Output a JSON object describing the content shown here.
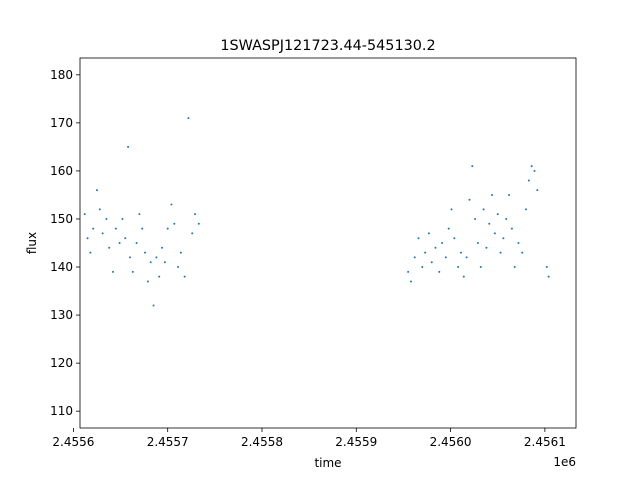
{
  "chart_data": {
    "type": "scatter",
    "title": "1SWASPJ121723.44-545130.2",
    "xlabel": "time",
    "ylabel": "flux",
    "x_offset_label": "1e6",
    "xlim": [
      2455607,
      2456133
    ],
    "ylim": [
      106.5,
      183.5
    ],
    "xticks": [
      2455600,
      2455700,
      2455800,
      2455900,
      2456000,
      2456100
    ],
    "xtick_labels": [
      "2.4556",
      "2.4557",
      "2.4558",
      "2.4559",
      "2.4560",
      "2.4561"
    ],
    "yticks": [
      110,
      120,
      130,
      140,
      150,
      160,
      170,
      180
    ],
    "ytick_labels": [
      "110",
      "120",
      "130",
      "140",
      "150",
      "160",
      "170",
      "180"
    ],
    "grid": false,
    "marker_color": "#1f77b4",
    "series": [
      {
        "points": [
          {
            "x": 2455612,
            "y": 151
          },
          {
            "x": 2455615,
            "y": 146
          },
          {
            "x": 2455618,
            "y": 143
          },
          {
            "x": 2455621,
            "y": 148
          },
          {
            "x": 2455625,
            "y": 156
          },
          {
            "x": 2455628,
            "y": 152
          },
          {
            "x": 2455631,
            "y": 147
          },
          {
            "x": 2455635,
            "y": 150
          },
          {
            "x": 2455638,
            "y": 144
          },
          {
            "x": 2455642,
            "y": 139
          },
          {
            "x": 2455645,
            "y": 148
          },
          {
            "x": 2455649,
            "y": 145
          },
          {
            "x": 2455652,
            "y": 150
          },
          {
            "x": 2455655,
            "y": 146
          },
          {
            "x": 2455658,
            "y": 165
          },
          {
            "x": 2455660,
            "y": 142
          },
          {
            "x": 2455663,
            "y": 139
          },
          {
            "x": 2455667,
            "y": 145
          },
          {
            "x": 2455670,
            "y": 151
          },
          {
            "x": 2455673,
            "y": 148
          },
          {
            "x": 2455676,
            "y": 143
          },
          {
            "x": 2455679,
            "y": 137
          },
          {
            "x": 2455682,
            "y": 141
          },
          {
            "x": 2455685,
            "y": 132
          },
          {
            "x": 2455688,
            "y": 142
          },
          {
            "x": 2455691,
            "y": 138
          },
          {
            "x": 2455694,
            "y": 144
          },
          {
            "x": 2455697,
            "y": 141
          },
          {
            "x": 2455700,
            "y": 148
          },
          {
            "x": 2455704,
            "y": 153
          },
          {
            "x": 2455707,
            "y": 149
          },
          {
            "x": 2455711,
            "y": 140
          },
          {
            "x": 2455714,
            "y": 143
          },
          {
            "x": 2455718,
            "y": 138
          },
          {
            "x": 2455722,
            "y": 171
          },
          {
            "x": 2455726,
            "y": 147
          },
          {
            "x": 2455729,
            "y": 151
          },
          {
            "x": 2455733,
            "y": 149
          },
          {
            "x": 2455955,
            "y": 139
          },
          {
            "x": 2455958,
            "y": 137
          },
          {
            "x": 2455962,
            "y": 142
          },
          {
            "x": 2455966,
            "y": 146
          },
          {
            "x": 2455970,
            "y": 140
          },
          {
            "x": 2455973,
            "y": 143
          },
          {
            "x": 2455977,
            "y": 147
          },
          {
            "x": 2455980,
            "y": 141
          },
          {
            "x": 2455984,
            "y": 144
          },
          {
            "x": 2455988,
            "y": 139
          },
          {
            "x": 2455991,
            "y": 145
          },
          {
            "x": 2455995,
            "y": 142
          },
          {
            "x": 2455998,
            "y": 148
          },
          {
            "x": 2456001,
            "y": 152
          },
          {
            "x": 2456004,
            "y": 146
          },
          {
            "x": 2456008,
            "y": 140
          },
          {
            "x": 2456011,
            "y": 143
          },
          {
            "x": 2456014,
            "y": 138
          },
          {
            "x": 2456017,
            "y": 142
          },
          {
            "x": 2456020,
            "y": 154
          },
          {
            "x": 2456023,
            "y": 161
          },
          {
            "x": 2456026,
            "y": 150
          },
          {
            "x": 2456029,
            "y": 145
          },
          {
            "x": 2456032,
            "y": 140
          },
          {
            "x": 2456035,
            "y": 152
          },
          {
            "x": 2456038,
            "y": 144
          },
          {
            "x": 2456041,
            "y": 149
          },
          {
            "x": 2456044,
            "y": 155
          },
          {
            "x": 2456047,
            "y": 147
          },
          {
            "x": 2456050,
            "y": 151
          },
          {
            "x": 2456053,
            "y": 143
          },
          {
            "x": 2456056,
            "y": 146
          },
          {
            "x": 2456059,
            "y": 150
          },
          {
            "x": 2456062,
            "y": 155
          },
          {
            "x": 2456065,
            "y": 148
          },
          {
            "x": 2456068,
            "y": 140
          },
          {
            "x": 2456072,
            "y": 145
          },
          {
            "x": 2456076,
            "y": 143
          },
          {
            "x": 2456080,
            "y": 152
          },
          {
            "x": 2456083,
            "y": 158
          },
          {
            "x": 2456086,
            "y": 161
          },
          {
            "x": 2456089,
            "y": 160
          },
          {
            "x": 2456092,
            "y": 156
          },
          {
            "x": 2456102,
            "y": 140
          },
          {
            "x": 2456104,
            "y": 138
          }
        ]
      }
    ]
  }
}
